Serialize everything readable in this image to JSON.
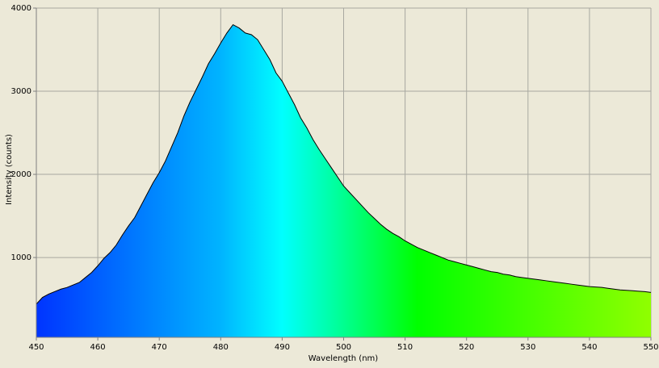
{
  "chart_data": {
    "type": "area",
    "x_label": "Wavelength (nm)",
    "y_label": "Intensity (counts)",
    "x": [
      450,
      451,
      452,
      453,
      454,
      455,
      456,
      457,
      458,
      459,
      460,
      461,
      462,
      463,
      464,
      465,
      466,
      467,
      468,
      469,
      470,
      471,
      472,
      473,
      474,
      475,
      476,
      477,
      478,
      479,
      480,
      481,
      482,
      483,
      484,
      485,
      486,
      487,
      488,
      489,
      490,
      491,
      492,
      493,
      494,
      495,
      496,
      497,
      498,
      499,
      500,
      501,
      502,
      503,
      504,
      505,
      506,
      507,
      508,
      509,
      510,
      511,
      512,
      513,
      514,
      515,
      516,
      517,
      518,
      519,
      520,
      521,
      522,
      523,
      524,
      525,
      526,
      527,
      528,
      529,
      530,
      531,
      532,
      533,
      534,
      535,
      536,
      537,
      538,
      539,
      540,
      541,
      542,
      543,
      544,
      545,
      546,
      547,
      548,
      549,
      550
    ],
    "values": [
      440,
      520,
      560,
      590,
      620,
      640,
      670,
      700,
      760,
      820,
      900,
      990,
      1060,
      1150,
      1270,
      1380,
      1480,
      1620,
      1760,
      1900,
      2020,
      2160,
      2330,
      2500,
      2700,
      2870,
      3020,
      3170,
      3330,
      3450,
      3580,
      3700,
      3800,
      3760,
      3700,
      3680,
      3620,
      3500,
      3380,
      3220,
      3120,
      2980,
      2840,
      2680,
      2560,
      2420,
      2300,
      2190,
      2080,
      1970,
      1860,
      1780,
      1700,
      1620,
      1540,
      1470,
      1400,
      1340,
      1290,
      1250,
      1200,
      1160,
      1120,
      1090,
      1060,
      1030,
      1000,
      970,
      950,
      930,
      910,
      890,
      870,
      850,
      830,
      820,
      800,
      790,
      770,
      760,
      750,
      740,
      730,
      720,
      710,
      700,
      690,
      680,
      670,
      660,
      650,
      645,
      640,
      630,
      620,
      610,
      605,
      600,
      595,
      590,
      580
    ],
    "line_color": "#000000",
    "xlim": [
      450,
      550
    ],
    "xticks": [
      450,
      460,
      470,
      480,
      490,
      500,
      510,
      520,
      530,
      540,
      550
    ],
    "ylim": [
      40,
      4000
    ],
    "yticks": [
      1000,
      2000,
      3000,
      4000
    ],
    "grid": true
  }
}
